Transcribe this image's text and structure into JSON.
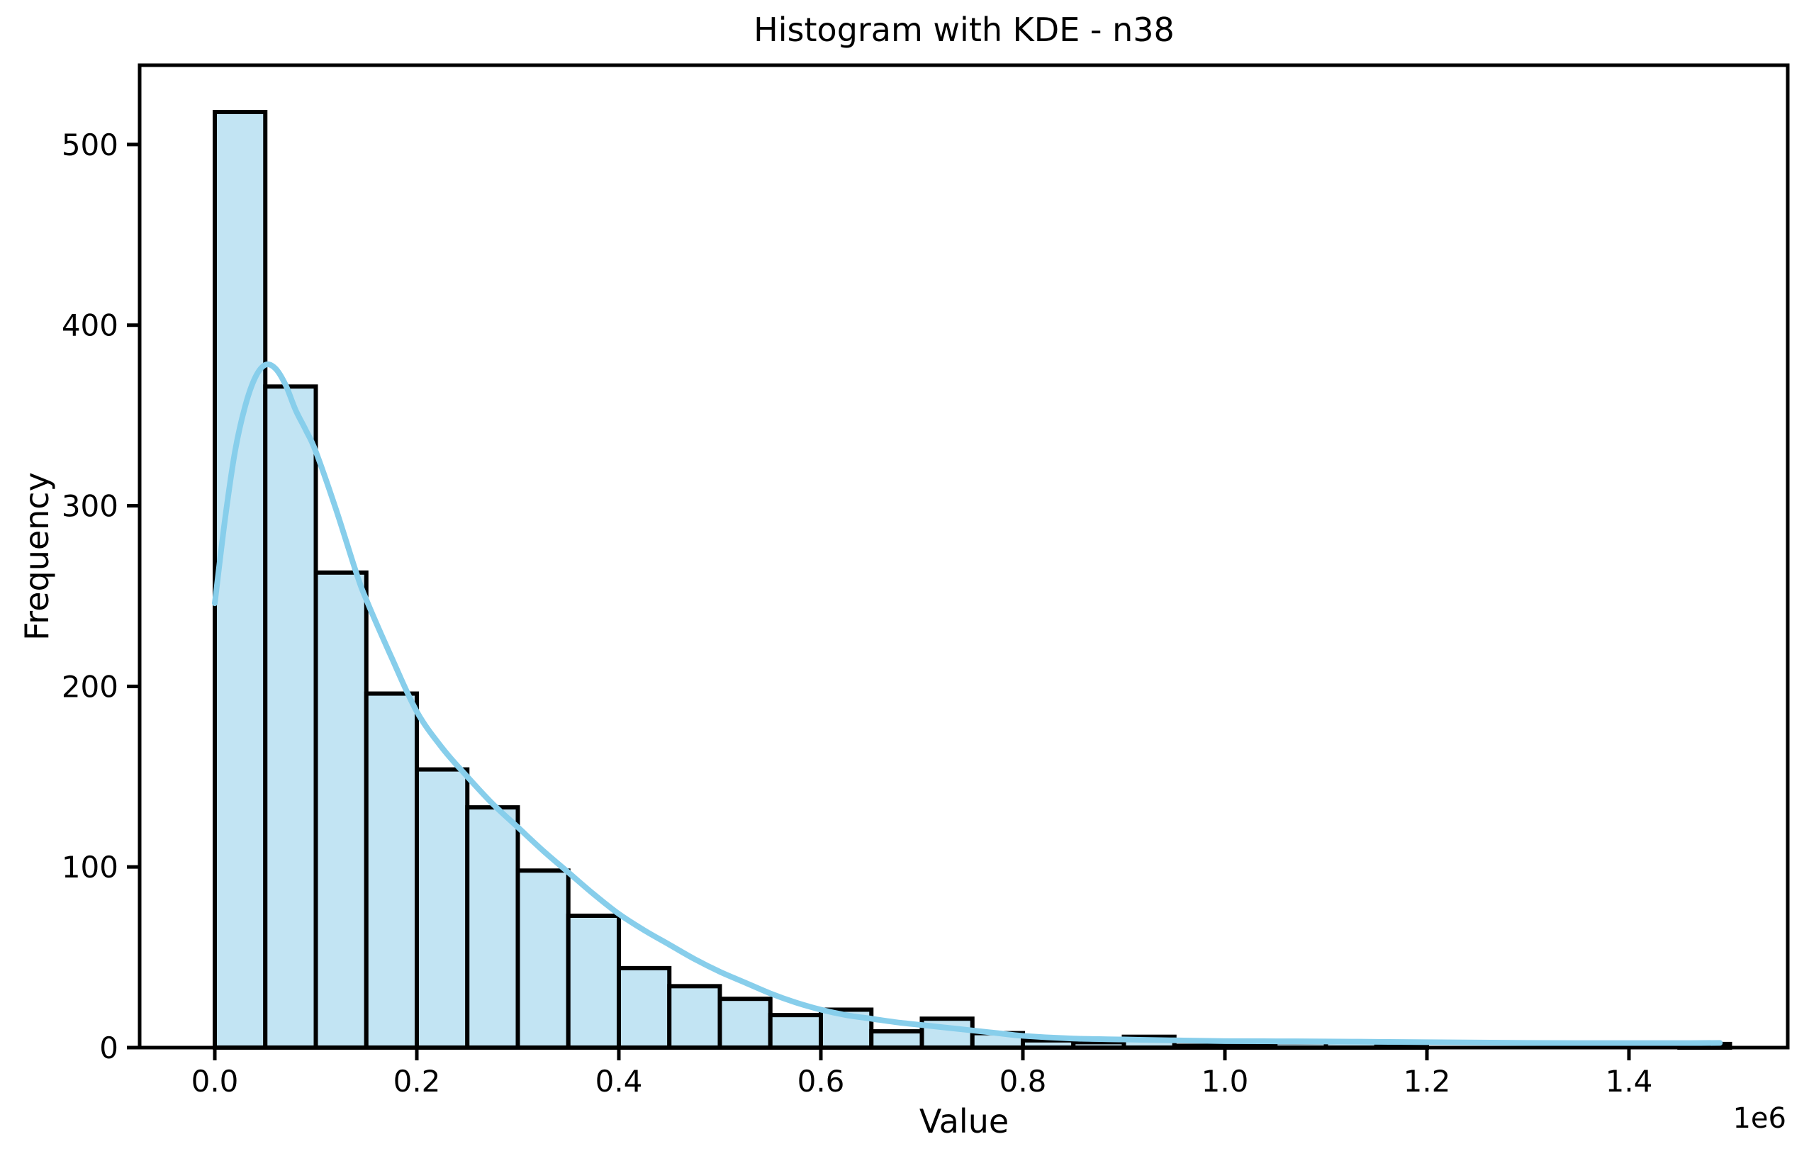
{
  "figure": {
    "title": "Histogram with KDE - n38",
    "xlabel": "Value",
    "ylabel": "Frequency",
    "x_offset_label": "1e6"
  },
  "chart_data": {
    "type": "bar",
    "subtype": "histogram_with_kde",
    "title": "Histogram with KDE - n38",
    "xlabel": "Value",
    "ylabel": "Frequency",
    "x_scale_offset": "1e6",
    "grid": false,
    "legend": null,
    "bin_start": 0,
    "bin_width": 50000,
    "bin_counts": [
      518,
      366,
      263,
      196,
      154,
      133,
      98,
      73,
      44,
      34,
      27,
      18,
      21,
      9,
      16,
      8,
      4,
      3,
      6,
      1,
      1,
      3,
      3,
      1,
      0,
      0,
      0,
      0,
      0,
      2
    ],
    "xticks": [
      0,
      200000,
      400000,
      600000,
      800000,
      1000000,
      1200000,
      1400000
    ],
    "xtick_labels": [
      "0.0",
      "0.2",
      "0.4",
      "0.6",
      "0.8",
      "1.0",
      "1.2",
      "1.4"
    ],
    "yticks": [
      0,
      100,
      200,
      300,
      400,
      500
    ],
    "ytick_labels": [
      "0",
      "100",
      "200",
      "300",
      "400",
      "500"
    ],
    "xlim": [
      -74400,
      1557200
    ],
    "ylim": [
      0,
      543.9
    ],
    "kde_curve": [
      [
        0,
        246
      ],
      [
        10000,
        292
      ],
      [
        20000,
        330
      ],
      [
        30000,
        355
      ],
      [
        40000,
        371
      ],
      [
        50000,
        378
      ],
      [
        60000,
        376
      ],
      [
        70000,
        367
      ],
      [
        80000,
        353
      ],
      [
        90000,
        342
      ],
      [
        100000,
        330
      ],
      [
        120000,
        298
      ],
      [
        140000,
        263
      ],
      [
        150000,
        248
      ],
      [
        175000,
        216
      ],
      [
        200000,
        186
      ],
      [
        225000,
        166
      ],
      [
        250000,
        150
      ],
      [
        275000,
        135
      ],
      [
        300000,
        122
      ],
      [
        325000,
        109
      ],
      [
        350000,
        97
      ],
      [
        375000,
        85
      ],
      [
        400000,
        74
      ],
      [
        425000,
        65
      ],
      [
        450000,
        57
      ],
      [
        475000,
        49
      ],
      [
        500000,
        42
      ],
      [
        525000,
        36
      ],
      [
        550000,
        30
      ],
      [
        575000,
        25
      ],
      [
        600000,
        21
      ],
      [
        625000,
        18
      ],
      [
        650000,
        16
      ],
      [
        675000,
        14
      ],
      [
        700000,
        12.5
      ],
      [
        725000,
        11
      ],
      [
        750000,
        9.5
      ],
      [
        775000,
        8
      ],
      [
        800000,
        6.5
      ],
      [
        850000,
        5
      ],
      [
        900000,
        4.5
      ],
      [
        950000,
        4
      ],
      [
        1000000,
        3.6
      ],
      [
        1050000,
        3.5
      ],
      [
        1100000,
        3.4
      ],
      [
        1150000,
        3.2
      ],
      [
        1200000,
        3.0
      ],
      [
        1250000,
        2.8
      ],
      [
        1300000,
        2.6
      ],
      [
        1350000,
        2.5
      ],
      [
        1400000,
        2.5
      ],
      [
        1450000,
        2.5
      ],
      [
        1490000,
        2.6
      ]
    ],
    "colors": {
      "bar_fill": "#c2e4f3",
      "bar_edge": "#000000",
      "kde_line": "#87ceeb",
      "axis": "#000000",
      "text": "#000000",
      "background": "#ffffff"
    }
  }
}
